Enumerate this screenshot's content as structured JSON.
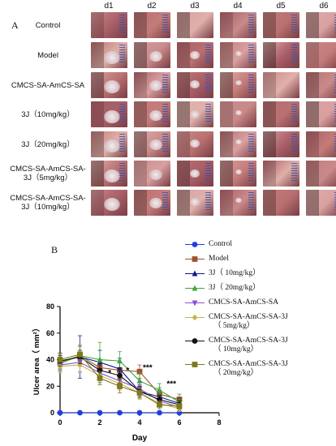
{
  "panel_a_label": "A",
  "panel_b_label": "B",
  "days": [
    "d1",
    "d2",
    "d3",
    "d4",
    "d5",
    "d6"
  ],
  "groups": [
    {
      "label": "Control"
    },
    {
      "label": "Model"
    },
    {
      "label": "CMCS-SA-AmCS-SA"
    },
    {
      "label": "3J（10mg/kg）"
    },
    {
      "label": "3J（20mg/kg）"
    },
    {
      "label": "CMCS-SA-AmCS-SA-\n3J（5mg/kg）"
    },
    {
      "label": "CMCS-SA-AmCS-SA-\n3J（10mg/kg）"
    }
  ],
  "colors": {
    "control": "#1f3fe0",
    "model": "#a0522d",
    "j10": "#14148a",
    "j20": "#3aa83a",
    "ams": "#8a4fd6",
    "ams5": "#c8b44a",
    "ams10": "#111111",
    "ams20": "#7b7a1e"
  },
  "chart_data": {
    "type": "line",
    "xlabel": "Day",
    "ylabel": "Ulcer area（ mm²）",
    "xlim": [
      0,
      8
    ],
    "ylim": [
      0,
      80
    ],
    "xticks": [
      0,
      2,
      4,
      6,
      8
    ],
    "yticks": [
      0,
      20,
      40,
      60,
      80
    ],
    "legend_position": "right",
    "x": [
      0,
      1,
      2,
      3,
      4,
      5,
      6
    ],
    "series": [
      {
        "name": "Control",
        "color": "#1f3fe0",
        "marker": "circle",
        "values": [
          0,
          0,
          0,
          0,
          0,
          0,
          0
        ],
        "errors": [
          0,
          0,
          0,
          0,
          0,
          0,
          0
        ]
      },
      {
        "name": "Model",
        "color": "#a0522d",
        "marker": "square",
        "values": [
          38,
          43,
          34,
          32,
          31,
          14,
          10
        ],
        "errors": [
          6,
          7,
          6,
          6,
          5,
          5,
          4
        ]
      },
      {
        "name": "3J（ 10mg/kg）",
        "color": "#14148a",
        "marker": "triangle",
        "values": [
          39,
          42,
          38,
          33,
          16,
          12,
          7
        ],
        "errors": [
          6,
          16,
          9,
          8,
          5,
          5,
          4
        ]
      },
      {
        "name": "3J（ 20mg/kg）",
        "color": "#3aa83a",
        "marker": "triangle",
        "values": [
          37,
          43,
          40,
          39,
          24,
          17,
          8
        ],
        "errors": [
          5,
          8,
          13,
          7,
          6,
          5,
          4
        ]
      },
      {
        "name": "CMCS-SA-AmCS-SA",
        "color": "#8a4fd6",
        "marker": "triangle-down",
        "values": [
          36,
          38,
          30,
          24,
          18,
          9,
          4
        ],
        "errors": [
          5,
          7,
          7,
          6,
          5,
          4,
          3
        ]
      },
      {
        "name": "CMCS-SA-AmCS-SA-3J\n（ 5mg/kg）",
        "color": "#c8b44a",
        "marker": "diamond",
        "values": [
          35,
          36,
          28,
          22,
          15,
          7,
          3
        ],
        "errors": [
          5,
          6,
          6,
          5,
          5,
          3,
          2
        ]
      },
      {
        "name": "CMCS-SA-AmCS-SA-3J\n（ 10mg/kg）",
        "color": "#111111",
        "marker": "circle",
        "values": [
          39,
          42,
          32,
          28,
          16,
          10,
          6
        ],
        "errors": [
          4,
          5,
          5,
          6,
          4,
          3,
          3
        ]
      },
      {
        "name": "CMCS-SA-AmCS-SA-3J\n（ 20mg/kg）",
        "color": "#7b7a1e",
        "marker": "square",
        "values": [
          40,
          44,
          26,
          20,
          15,
          6,
          5
        ],
        "errors": [
          5,
          6,
          5,
          5,
          4,
          3,
          2
        ]
      }
    ],
    "annotations": [
      {
        "text": "*",
        "x": 2.5,
        "y": 28
      },
      {
        "text": "*",
        "x": 3.4,
        "y": 30
      },
      {
        "text": "***",
        "x": 4.4,
        "y": 32
      },
      {
        "text": "***",
        "x": 5.6,
        "y": 20
      }
    ]
  }
}
